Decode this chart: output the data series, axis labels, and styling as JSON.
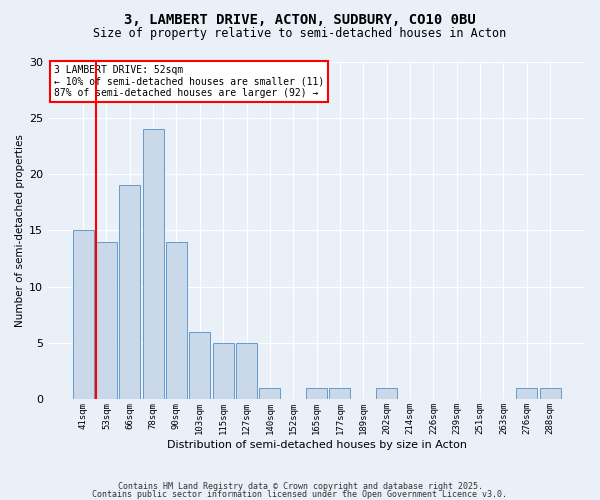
{
  "title1": "3, LAMBERT DRIVE, ACTON, SUDBURY, CO10 0BU",
  "title2": "Size of property relative to semi-detached houses in Acton",
  "xlabel": "Distribution of semi-detached houses by size in Acton",
  "ylabel": "Number of semi-detached properties",
  "bin_labels": [
    "41sqm",
    "53sqm",
    "66sqm",
    "78sqm",
    "90sqm",
    "103sqm",
    "115sqm",
    "127sqm",
    "140sqm",
    "152sqm",
    "165sqm",
    "177sqm",
    "189sqm",
    "202sqm",
    "214sqm",
    "226sqm",
    "239sqm",
    "251sqm",
    "263sqm",
    "276sqm",
    "288sqm"
  ],
  "values": [
    15,
    14,
    19,
    24,
    14,
    6,
    5,
    5,
    1,
    0,
    1,
    1,
    0,
    1,
    0,
    0,
    0,
    0,
    0,
    1,
    1
  ],
  "bar_color": "#c9d9ea",
  "bar_edge_color": "#6699cc",
  "red_line_index": 1,
  "annotation_title": "3 LAMBERT DRIVE: 52sqm",
  "annotation_line1": "← 10% of semi-detached houses are smaller (11)",
  "annotation_line2": "87% of semi-detached houses are larger (92) →",
  "annotation_box_color": "white",
  "annotation_box_edge": "red",
  "footer1": "Contains HM Land Registry data © Crown copyright and database right 2025.",
  "footer2": "Contains public sector information licensed under the Open Government Licence v3.0.",
  "bg_color": "#eaf0f8",
  "plot_bg_color": "#eaf0f8",
  "ylim": [
    0,
    30
  ],
  "yticks": [
    0,
    5,
    10,
    15,
    20,
    25,
    30
  ]
}
